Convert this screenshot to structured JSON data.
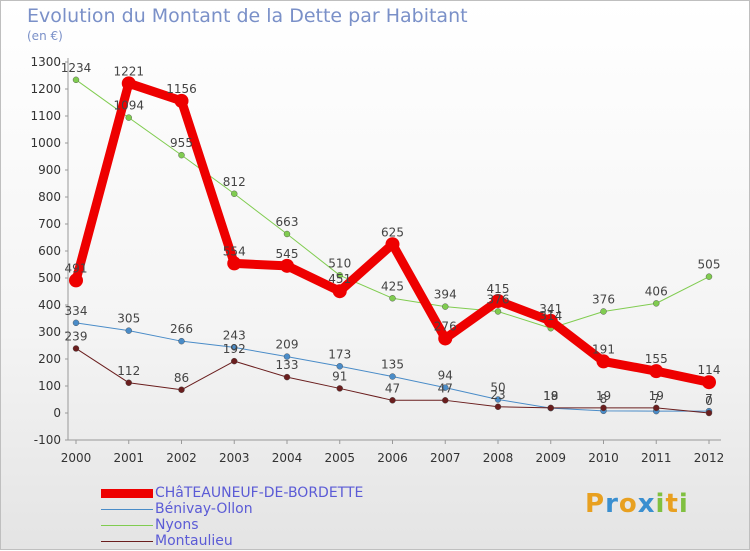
{
  "title": "Evolution du Montant de la Dette par Habitant",
  "subtitle": "(en €)",
  "logo": {
    "letters": [
      "P",
      "r",
      "o",
      "x",
      "i",
      "t",
      "i"
    ],
    "colors": [
      "#e8a020",
      "#3a8fd0",
      "#e8a020",
      "#3a8fd0",
      "#80c040",
      "#e8a020",
      "#80c040"
    ]
  },
  "chart_data": {
    "type": "line",
    "title": "Evolution du Montant de la Dette par Habitant",
    "ylabel": "(en €)",
    "xlabel": "",
    "x": [
      "2000",
      "2001",
      "2002",
      "2003",
      "2004",
      "2005",
      "2006",
      "2007",
      "2008",
      "2009",
      "2010",
      "2011",
      "2012"
    ],
    "ylim": [
      -100,
      1300
    ],
    "yticks": [
      "-100",
      "0",
      "100",
      "200",
      "300",
      "400",
      "500",
      "600",
      "700",
      "800",
      "900",
      "1000",
      "1100",
      "1200",
      "1300"
    ],
    "grid": false,
    "legend": "bottom-left",
    "series": [
      {
        "name": "CHâTEAUNEUF-DE-BORDETTE",
        "color": "#ee0000",
        "width": 9,
        "values": [
          491,
          1221,
          1156,
          554,
          545,
          451,
          625,
          276,
          415,
          341,
          191,
          155,
          114
        ],
        "labels": [
          "491",
          "1221",
          "1156",
          "554",
          "545",
          "451",
          "625",
          "276",
          "415",
          "341",
          "191",
          "155",
          "114"
        ]
      },
      {
        "name": "Bénivay-Ollon",
        "color": "#4a8cc8",
        "width": 1,
        "values": [
          334,
          305,
          266,
          243,
          209,
          173,
          135,
          94,
          50,
          18,
          8,
          7,
          7
        ],
        "labels": [
          "334",
          "305",
          "266",
          "243",
          "209",
          "173",
          "135",
          "94",
          "50",
          "18",
          "8",
          "7",
          "7"
        ]
      },
      {
        "name": "Nyons",
        "color": "#80cc50",
        "width": 1,
        "values": [
          1234,
          1094,
          955,
          812,
          663,
          510,
          425,
          394,
          376,
          314,
          376,
          406,
          505
        ],
        "labels": [
          "1234",
          "1094",
          "955",
          "812",
          "663",
          "510",
          "425",
          "394",
          "376",
          "314",
          "376",
          "406",
          "505"
        ]
      },
      {
        "name": "Montaulieu",
        "color": "#6a1e1e",
        "width": 1,
        "values": [
          239,
          112,
          86,
          192,
          133,
          91,
          47,
          47,
          23,
          19,
          19,
          19,
          0
        ],
        "labels": [
          "239",
          "112",
          "86",
          "192",
          "133",
          "91",
          "47",
          "47",
          "23",
          "19",
          "19",
          "19",
          "0"
        ]
      }
    ]
  }
}
